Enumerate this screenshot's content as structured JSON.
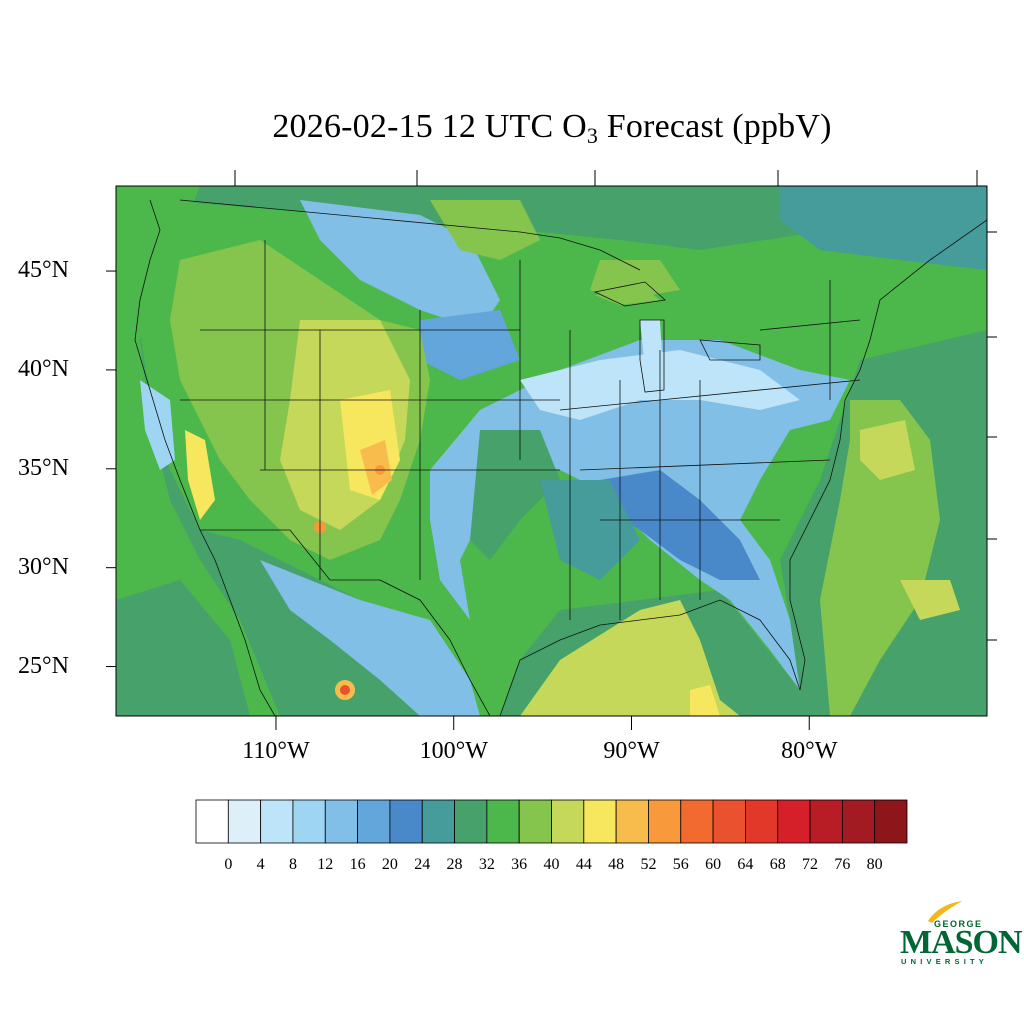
{
  "title": {
    "main": "2026-02-15 12 UTC O",
    "sub": "3",
    "tail": " Forecast (ppbV)"
  },
  "map": {
    "lat_range": [
      22.5,
      49.3
    ],
    "lon_range": [
      -119.0,
      -70.0
    ],
    "lat_ticks": [
      {
        "value": 45,
        "label": "45°N"
      },
      {
        "value": 40,
        "label": "40°N"
      },
      {
        "value": 35,
        "label": "35°N"
      },
      {
        "value": 30,
        "label": "30°N"
      },
      {
        "value": 25,
        "label": "25°N"
      }
    ],
    "lon_ticks": [
      {
        "value": -110,
        "label": "110°W"
      },
      {
        "value": -100,
        "label": "100°W"
      },
      {
        "value": -90,
        "label": "90°W"
      },
      {
        "value": -80,
        "label": "80°W"
      }
    ]
  },
  "colorbar": {
    "labels": [
      "0",
      "4",
      "8",
      "12",
      "16",
      "20",
      "24",
      "28",
      "32",
      "36",
      "40",
      "44",
      "48",
      "52",
      "56",
      "60",
      "64",
      "68",
      "72",
      "76",
      "80"
    ],
    "colors": [
      "#ffffff",
      "#ddf0fa",
      "#bde4f8",
      "#9dd5f3",
      "#82bfe6",
      "#62a6dc",
      "#4a89c9",
      "#469b9b",
      "#46a26a",
      "#4cb74a",
      "#85c54e",
      "#c5d85a",
      "#f7e75e",
      "#f8bc4c",
      "#f89a3c",
      "#f26a30",
      "#e9512f",
      "#e23829",
      "#d52029",
      "#b81c25",
      "#a41a23",
      "#8e1519"
    ]
  },
  "logo": {
    "top": "GEORGE",
    "main": "MASON",
    "bottom": "UNIVERSITY",
    "color": "#006633",
    "accent": "#f2b81b"
  }
}
